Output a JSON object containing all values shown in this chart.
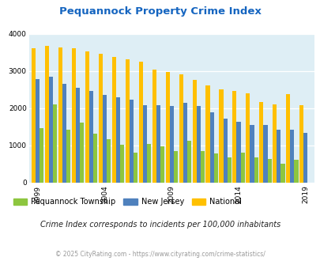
{
  "title": "Pequannock Property Crime Index",
  "years": [
    1999,
    2000,
    2001,
    2002,
    2003,
    2004,
    2005,
    2006,
    2007,
    2008,
    2009,
    2010,
    2011,
    2012,
    2013,
    2014,
    2015,
    2016,
    2017,
    2018,
    2019
  ],
  "pequannock": [
    1460,
    2100,
    1430,
    1620,
    1320,
    1160,
    1020,
    800,
    1050,
    970,
    840,
    1130,
    860,
    790,
    680,
    800,
    670,
    640,
    510,
    620,
    0
  ],
  "new_jersey": [
    2780,
    2850,
    2650,
    2560,
    2460,
    2360,
    2290,
    2230,
    2090,
    2090,
    2070,
    2150,
    2060,
    1900,
    1720,
    1630,
    1560,
    1560,
    1430,
    1430,
    1350
  ],
  "national": [
    3620,
    3670,
    3640,
    3610,
    3540,
    3460,
    3380,
    3310,
    3250,
    3050,
    2970,
    2910,
    2760,
    2610,
    2510,
    2470,
    2400,
    2170,
    2100,
    2380,
    2090
  ],
  "pequannock_color": "#8dc63f",
  "nj_color": "#4f81bd",
  "national_color": "#ffc000",
  "bg_color": "#deeef5",
  "title_color": "#1565c0",
  "subtitle_color": "#222222",
  "footer_color": "#999999",
  "ylim": [
    0,
    4000
  ],
  "ylabel_ticks": [
    0,
    1000,
    2000,
    3000,
    4000
  ],
  "shown_years": [
    1999,
    2004,
    2009,
    2014,
    2019
  ],
  "subtitle": "Crime Index corresponds to incidents per 100,000 inhabitants",
  "footer": "© 2025 CityRating.com - https://www.cityrating.com/crime-statistics/"
}
